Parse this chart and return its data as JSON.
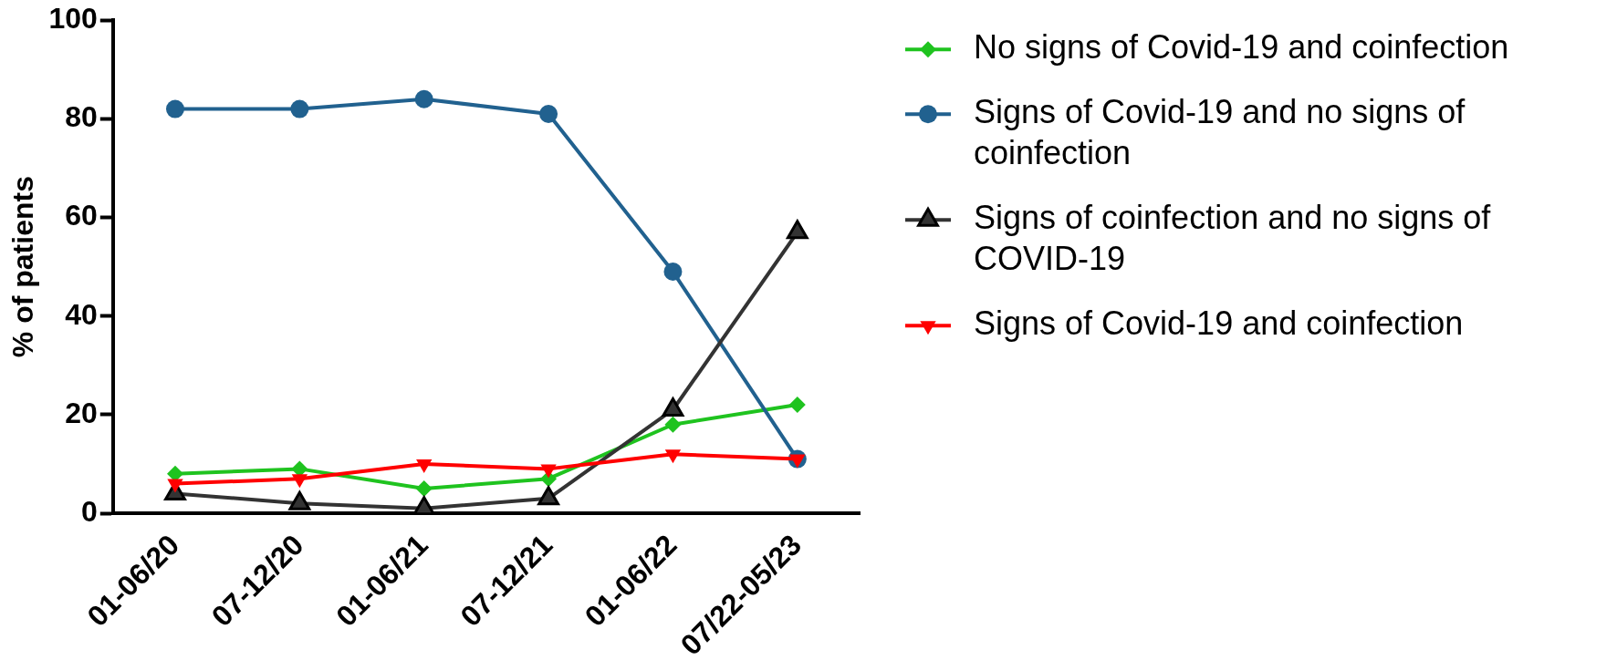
{
  "chart_data": {
    "type": "line",
    "ylabel": "% of patients",
    "categories": [
      "01-06/20",
      "07-12/20",
      "01-06/21",
      "07-12/21",
      "01-06/22",
      "07/22-05/23"
    ],
    "series": [
      {
        "name": "No signs of Covid-19 and coinfection",
        "color": "#1fc31f",
        "marker": "diamond",
        "values": [
          8,
          9,
          5,
          7,
          18,
          22
        ]
      },
      {
        "name": "Signs of Covid-19 and no signs of coinfection",
        "color": "#21618f",
        "marker": "circle",
        "values": [
          82,
          82,
          84,
          81,
          49,
          11
        ]
      },
      {
        "name": "Signs of coinfection and no signs of COVID-19",
        "color": "#333333",
        "marker": "triangle",
        "values": [
          4,
          2,
          1,
          3,
          21,
          57
        ]
      },
      {
        "name": "Signs of Covid-19 and coinfection",
        "color": "#ff0000",
        "marker": "triangle-down",
        "values": [
          6,
          7,
          10,
          9,
          12,
          11
        ]
      }
    ],
    "ylim": [
      0,
      100
    ],
    "yticks": [
      0,
      20,
      40,
      60,
      80,
      100
    ],
    "grid": false,
    "legend": "top right"
  }
}
